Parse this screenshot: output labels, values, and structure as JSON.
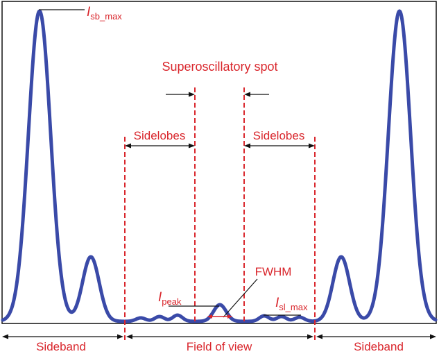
{
  "labels": {
    "isb_max_main": "I",
    "isb_max_sub": "sb_max",
    "superoscillatory_spot": "Superoscillatory spot",
    "sidelobes_left": "Sidelobes",
    "sidelobes_right": "Sidelobes",
    "fwhm": "FWHM",
    "ipeak_main": "I",
    "ipeak_sub": "peak",
    "isl_max_main": "I",
    "isl_max_sub": "sl_max",
    "sideband_left": "Sideband",
    "field_of_view": "Field of view",
    "sideband_right": "Sideband"
  },
  "colors": {
    "curve": "#3a4aa8",
    "annotation": "#d9262c",
    "frame": "#111111"
  }
}
